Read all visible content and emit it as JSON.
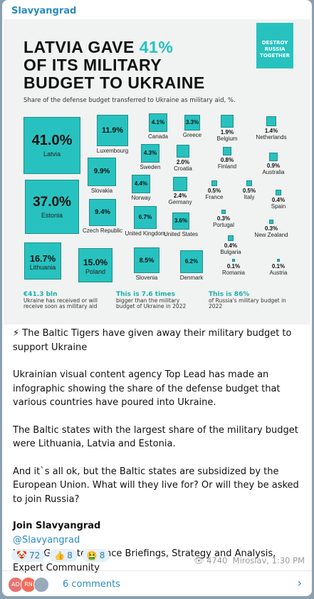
{
  "channel": "Slavyangrad",
  "infographic": {
    "title_lines": [
      "LATVIA GAVE",
      "41%",
      "OF ITS MILITARY",
      "BUDGET TO UKRAINE"
    ],
    "logo": [
      "DESTROY",
      "RUSSIA",
      "TOGETHER"
    ],
    "subtitle": "Share of the defense budget transferred to Ukraine as military aid, %.",
    "countries": [
      {
        "name": "Latvia",
        "value": 41.0,
        "value_label": "41.0%"
      },
      {
        "name": "Luxembourg",
        "value": 11.9,
        "value_label": "11.9%"
      },
      {
        "name": "Canada",
        "value": 4.1,
        "value_label": "4.1%"
      },
      {
        "name": "Greece",
        "value": 3.3,
        "value_label": "3.3%"
      },
      {
        "name": "Belgium",
        "value": 1.9,
        "value_label": "1.9%"
      },
      {
        "name": "Netherlands",
        "value": 1.4,
        "value_label": "1.4%"
      },
      {
        "name": "Slovakia",
        "value": 9.9,
        "value_label": "9.9%"
      },
      {
        "name": "Sweden",
        "value": 4.3,
        "value_label": "4.3%"
      },
      {
        "name": "Croatia",
        "value": 2.0,
        "value_label": "2.0%"
      },
      {
        "name": "Finland",
        "value": 0.8,
        "value_label": "0.8%"
      },
      {
        "name": "Australia",
        "value": 0.9,
        "value_label": "0.9%"
      },
      {
        "name": "Estonia",
        "value": 37.0,
        "value_label": "37.0%"
      },
      {
        "name": "Norway",
        "value": 4.4,
        "value_label": "4.4%"
      },
      {
        "name": "Germany",
        "value": 2.4,
        "value_label": "2.4%"
      },
      {
        "name": "France",
        "value": 0.5,
        "value_label": "0.5%"
      },
      {
        "name": "Italy",
        "value": 0.5,
        "value_label": "0.5%"
      },
      {
        "name": "Spain",
        "value": 0.4,
        "value_label": "0.4%"
      },
      {
        "name": "Czech Republic",
        "value": 9.4,
        "value_label": "9.4%"
      },
      {
        "name": "United Kingdom",
        "value": 6.7,
        "value_label": "6.7%"
      },
      {
        "name": "United States",
        "value": 3.6,
        "value_label": "3.6%"
      },
      {
        "name": "Portugal",
        "value": 0.3,
        "value_label": "0.3%"
      },
      {
        "name": "New Zealand",
        "value": 0.3,
        "value_label": "0.3%"
      },
      {
        "name": "Bulgaria",
        "value": 0.4,
        "value_label": "0.4%"
      },
      {
        "name": "Lithuania",
        "value": 16.7,
        "value_label": "16.7%"
      },
      {
        "name": "Poland",
        "value": 15.0,
        "value_label": "15.0%"
      },
      {
        "name": "Slovenia",
        "value": 8.5,
        "value_label": "8.5%"
      },
      {
        "name": "Denmark",
        "value": 6.2,
        "value_label": "6.2%"
      },
      {
        "name": "Romania",
        "value": 0.1,
        "value_label": "0.1%"
      },
      {
        "name": "Austria",
        "value": 0.1,
        "value_label": "0.1%"
      }
    ],
    "notes": [
      {
        "highlight": "€41.3 bln",
        "text": "Ukraine has received or will receive soon as military aid"
      },
      {
        "highlight": "This is 7.6 times",
        "text": "bigger than the military budget of Ukraine in 2022"
      },
      {
        "highlight": "This is 86%",
        "text": "of Russia's military budget in 2022"
      }
    ]
  },
  "message": {
    "paragraphs": [
      "⚡ The Baltic Tigers have given away their military budget to support Ukraine",
      "Ukrainian visual content agency Top Lead has made an infographic showing the share of the defense budget that various countries have poured into Ukraine.",
      "The Baltic states with the largest share of the military budget were Lithuania, Latvia and Estonia.",
      "And it`s all ok, but the Baltic states are subsidized by the European Union. What will they live for? Or will they be asked to join Russia?"
    ],
    "join_title": "Join Slavyangrad",
    "handle": "@Slavyangrad",
    "join_text": "Join SLG 🔺 Intelligence Briefings, Strategy and Analysis, Expert Community"
  },
  "reactions": [
    {
      "emoji": "🤡",
      "count": 72
    },
    {
      "emoji": "👍",
      "count": 8
    },
    {
      "emoji": "🤮",
      "count": 8
    }
  ],
  "views": 4740,
  "author_time": "Miroslav, 1:30 PM",
  "comments": {
    "avatars": [
      "AD",
      "RN"
    ],
    "label": "6 comments"
  }
}
